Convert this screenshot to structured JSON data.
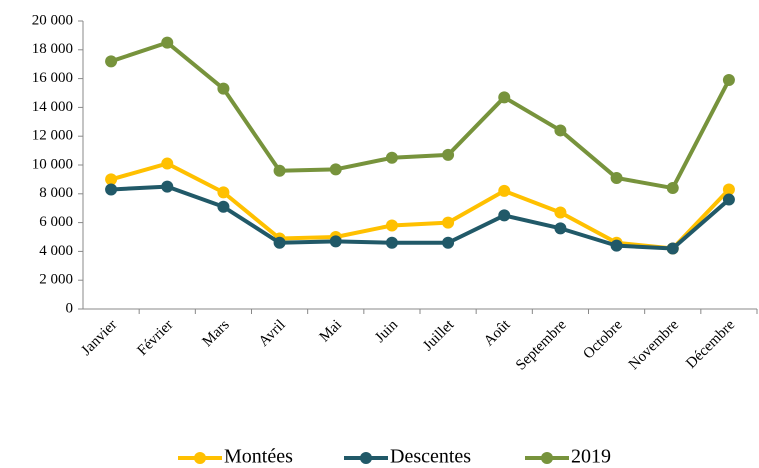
{
  "chart_data": {
    "type": "line",
    "categories": [
      "Janvier",
      "Février",
      "Mars",
      "Avril",
      "Mai",
      "Juin",
      "Juillet",
      "Août",
      "Septembre",
      "Octobre",
      "Novembre",
      "Décembre"
    ],
    "series": [
      {
        "name": "Montées",
        "color": "#ffc000",
        "values": [
          9000,
          10100,
          8100,
          4900,
          5000,
          5800,
          6000,
          8200,
          6700,
          4600,
          4200,
          8300
        ]
      },
      {
        "name": "Descentes",
        "color": "#215968",
        "values": [
          8300,
          8500,
          7100,
          4600,
          4700,
          4600,
          4600,
          6500,
          5600,
          4400,
          4200,
          7600
        ]
      },
      {
        "name": "2019",
        "color": "#77933c",
        "values": [
          17200,
          18500,
          15300,
          9600,
          9700,
          10500,
          10700,
          14700,
          12400,
          9100,
          8400,
          15900
        ]
      }
    ],
    "ylim": [
      0,
      20000
    ],
    "yticks": [
      0,
      {
        "value": 2000,
        "label": "2 000"
      },
      {
        "value": 4000,
        "label": "4 000"
      },
      {
        "value": 6000,
        "label": "6 000"
      },
      {
        "value": 8000,
        "label": "8 000"
      },
      {
        "value": 10000,
        "label": "10 000"
      },
      {
        "value": 12000,
        "label": "12 000"
      },
      {
        "value": 14000,
        "label": "14 000"
      },
      {
        "value": 16000,
        "label": "16 000"
      },
      {
        "value": 18000,
        "label": "18 000"
      },
      {
        "value": 20000,
        "label": "20 000"
      }
    ],
    "grid": false,
    "legend": "bottom"
  }
}
